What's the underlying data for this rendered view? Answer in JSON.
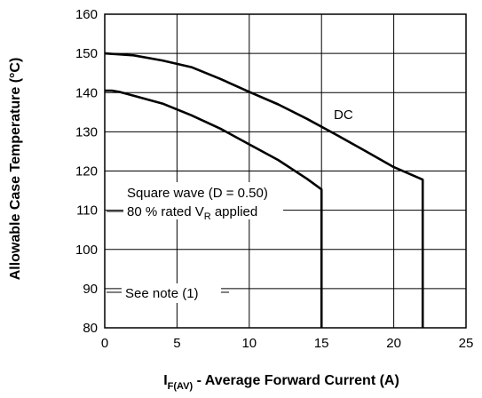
{
  "chart_data": {
    "type": "line",
    "title": "",
    "xlabel": {
      "main": "I",
      "sub": "F(AV)",
      "rest": " - Average Forward Current (A)"
    },
    "ylabel": "Allowable Case Temperature (°C)",
    "xlim": [
      0,
      25
    ],
    "ylim": [
      80,
      160
    ],
    "x_ticks": [
      "0",
      "5",
      "10",
      "15",
      "20",
      "25"
    ],
    "y_ticks": [
      "80",
      "90",
      "100",
      "110",
      "120",
      "130",
      "140",
      "150",
      "160"
    ],
    "grid": true,
    "series": [
      {
        "name": "DC",
        "x": [
          0,
          2,
          4,
          6,
          8,
          10,
          12,
          14,
          16,
          18,
          20,
          22,
          22
        ],
        "y": [
          150,
          149.5,
          148.2,
          146.5,
          143.5,
          140.2,
          137,
          133.3,
          129.3,
          125.2,
          121,
          117.8,
          80
        ]
      },
      {
        "name": "Square wave (D = 0.50)",
        "x": [
          0,
          0.5,
          1,
          2,
          4,
          6,
          8,
          10,
          12,
          14,
          15,
          15
        ],
        "y": [
          140.5,
          140.5,
          140.2,
          139.2,
          137.2,
          134.2,
          130.8,
          126.8,
          122.8,
          118,
          115.3,
          80
        ]
      }
    ],
    "annotations": {
      "dc": "DC",
      "square_line1": "Square wave (D = 0.50)",
      "square_line2_main": "80 % rated V",
      "square_line2_sub": "R",
      "square_line2_rest": " applied",
      "note": "See note (1)"
    }
  }
}
